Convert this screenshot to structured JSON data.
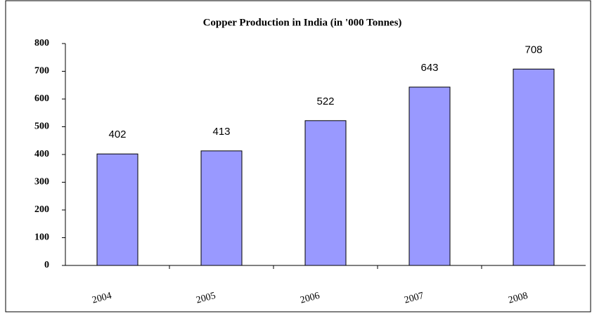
{
  "chart_data": {
    "type": "bar",
    "title": "Copper Production in India (in '000 Tonnes)",
    "categories": [
      "2004",
      "2005",
      "2006",
      "2007",
      "2008"
    ],
    "values": [
      402,
      413,
      522,
      643,
      708
    ],
    "color": "#9999ff",
    "ylim": [
      0,
      800
    ],
    "yticks": [
      0,
      100,
      200,
      300,
      400,
      500,
      600,
      700,
      800
    ],
    "grid": false
  }
}
